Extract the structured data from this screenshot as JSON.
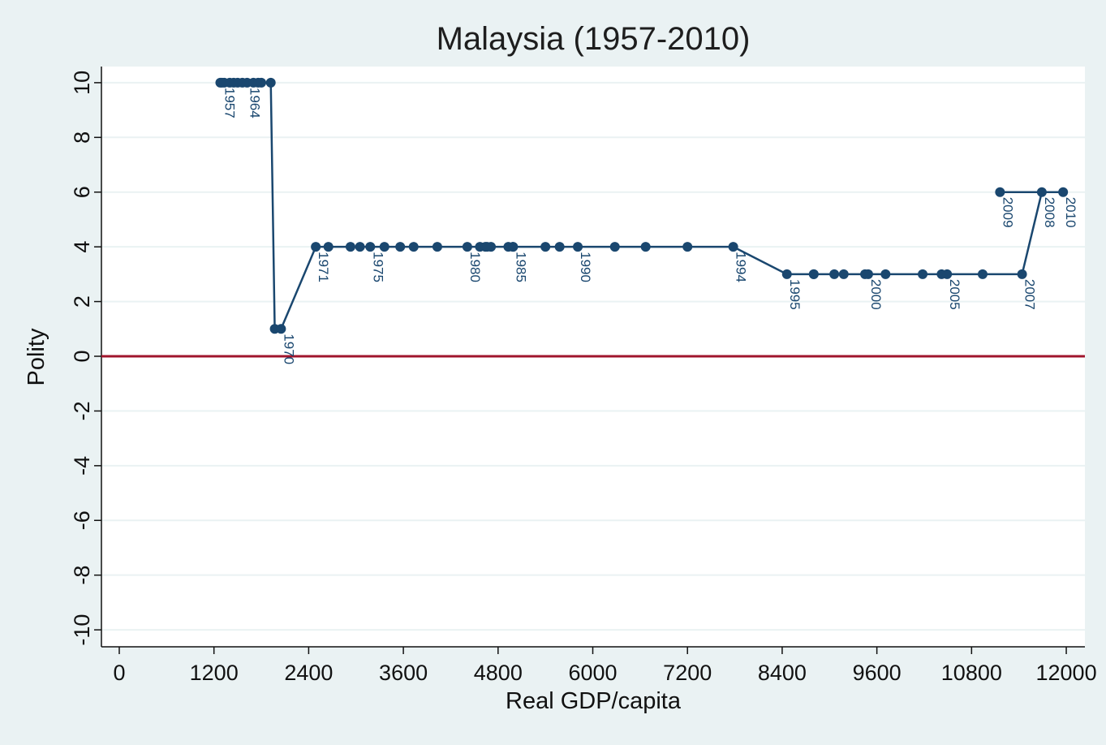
{
  "chart_data": {
    "type": "line",
    "title": "Malaysia (1957-2010)",
    "x_label": "Real GDP/capita",
    "y_label": "Polity",
    "color": "#1a476f",
    "x": [
      1300,
      1280,
      1330,
      1400,
      1450,
      1500,
      1560,
      1620,
      1700,
      1760,
      1800,
      1920,
      1970,
      2050,
      2490,
      2650,
      2930,
      3050,
      3180,
      3360,
      3560,
      3730,
      4030,
      4410,
      4570,
      4640,
      4710,
      4930,
      4990,
      4660,
      4990,
      5400,
      5580,
      5810,
      6280,
      6670,
      7200,
      7780,
      8460,
      8800,
      9060,
      8800,
      9180,
      9490,
      9450,
      9710,
      10180,
      10420,
      10490,
      10940,
      11440,
      11690,
      11160,
      11960
    ],
    "values": [
      10,
      10,
      10,
      10,
      10,
      10,
      10,
      10,
      10,
      10,
      10,
      10,
      1,
      1,
      4,
      4,
      4,
      4,
      4,
      4,
      4,
      4,
      4,
      4,
      4,
      4,
      4,
      4,
      4,
      4,
      4,
      4,
      4,
      4,
      4,
      4,
      4,
      4,
      3,
      3,
      3,
      3,
      3,
      3,
      3,
      3,
      3,
      3,
      3,
      3,
      3,
      6,
      6,
      6
    ],
    "point_labels": [
      "1957",
      null,
      null,
      null,
      null,
      null,
      null,
      "1964",
      null,
      null,
      null,
      null,
      null,
      "1970",
      "1971",
      null,
      null,
      null,
      "1975",
      null,
      null,
      null,
      null,
      "1980",
      null,
      null,
      null,
      null,
      "1985",
      null,
      null,
      null,
      null,
      "1990",
      null,
      null,
      null,
      "1994",
      "1995",
      null,
      null,
      null,
      null,
      "2000",
      null,
      null,
      null,
      null,
      "2005",
      null,
      "2007",
      "2008",
      "2009",
      "2010"
    ],
    "reference_line": {
      "y": 0,
      "color": "#a0152c"
    },
    "xlim": [
      -226,
      12236
    ],
    "ylim": [
      -10.62,
      10.59
    ],
    "xticks": [
      0,
      1200,
      2400,
      3600,
      4800,
      6000,
      7200,
      8400,
      9600,
      10800,
      12000
    ],
    "yticks": [
      -10,
      -8,
      -6,
      -4,
      -2,
      0,
      2,
      4,
      6,
      8,
      10
    ],
    "grid": true
  }
}
